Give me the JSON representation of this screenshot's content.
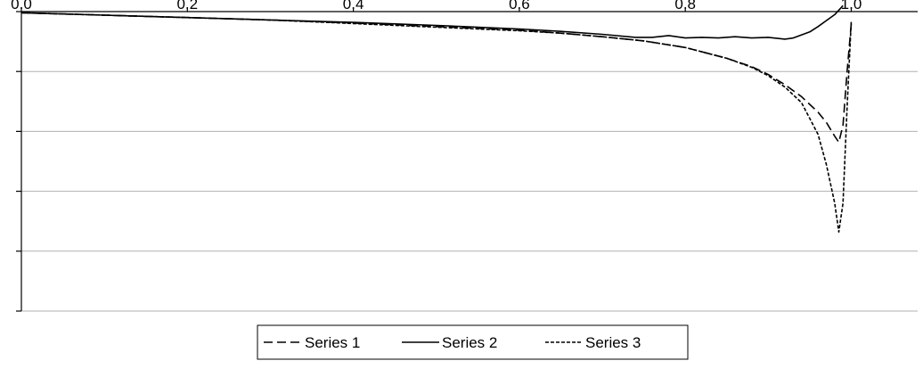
{
  "chart_data": {
    "type": "line",
    "title": "",
    "xlabel": "",
    "ylabel": "",
    "xlim": [
      0,
      1.08
    ],
    "ylim": [
      -5,
      0
    ],
    "x_ticks": [
      0,
      0.2,
      0.4,
      0.6,
      0.8,
      1.0
    ],
    "x_tick_labels": [
      "0.0",
      "0.2",
      "0.4",
      "0.6",
      "0.8",
      "1.0"
    ],
    "x_axis_position": "top",
    "y_tick_labels_visible": false,
    "grid": "horizontal",
    "legend": {
      "placement": "bottom-center",
      "box": true
    },
    "series": [
      {
        "name": "Series 1",
        "style": "dashed",
        "color": "#000000",
        "x": [
          0,
          0.1,
          0.2,
          0.3,
          0.4,
          0.5,
          0.6,
          0.65,
          0.7,
          0.75,
          0.8,
          0.85,
          0.88,
          0.9,
          0.92,
          0.94,
          0.96,
          0.97,
          0.98,
          0.985,
          0.99,
          0.995,
          1.0
        ],
        "y": [
          -0.02,
          -0.06,
          -0.1,
          -0.14,
          -0.19,
          -0.25,
          -0.31,
          -0.36,
          -0.42,
          -0.49,
          -0.6,
          -0.78,
          -0.92,
          -1.05,
          -1.22,
          -1.42,
          -1.68,
          -1.85,
          -2.08,
          -2.18,
          -1.9,
          -1.0,
          -0.2
        ]
      },
      {
        "name": "Series 2",
        "style": "solid",
        "color": "#000000",
        "x": [
          0,
          0.1,
          0.2,
          0.3,
          0.4,
          0.5,
          0.6,
          0.65,
          0.7,
          0.74,
          0.76,
          0.78,
          0.8,
          0.82,
          0.84,
          0.86,
          0.88,
          0.9,
          0.92,
          0.93,
          0.95,
          0.96,
          0.97,
          0.98,
          0.99
        ],
        "y": [
          -0.02,
          -0.06,
          -0.1,
          -0.14,
          -0.18,
          -0.23,
          -0.29,
          -0.33,
          -0.38,
          -0.43,
          -0.43,
          -0.4,
          -0.44,
          -0.43,
          -0.44,
          -0.42,
          -0.44,
          -0.43,
          -0.46,
          -0.44,
          -0.34,
          -0.25,
          -0.15,
          -0.05,
          0.1
        ]
      },
      {
        "name": "Series 3",
        "style": "dotted",
        "color": "#000000",
        "x": [
          0,
          0.1,
          0.2,
          0.3,
          0.4,
          0.5,
          0.6,
          0.65,
          0.7,
          0.75,
          0.8,
          0.85,
          0.88,
          0.9,
          0.92,
          0.94,
          0.96,
          0.97,
          0.98,
          0.985,
          0.99,
          0.995,
          1.0
        ],
        "y": [
          -0.02,
          -0.06,
          -0.1,
          -0.14,
          -0.2,
          -0.26,
          -0.32,
          -0.36,
          -0.42,
          -0.49,
          -0.6,
          -0.78,
          -0.93,
          -1.07,
          -1.26,
          -1.52,
          -2.05,
          -2.55,
          -3.2,
          -3.68,
          -3.2,
          -1.6,
          -0.15
        ]
      }
    ]
  }
}
